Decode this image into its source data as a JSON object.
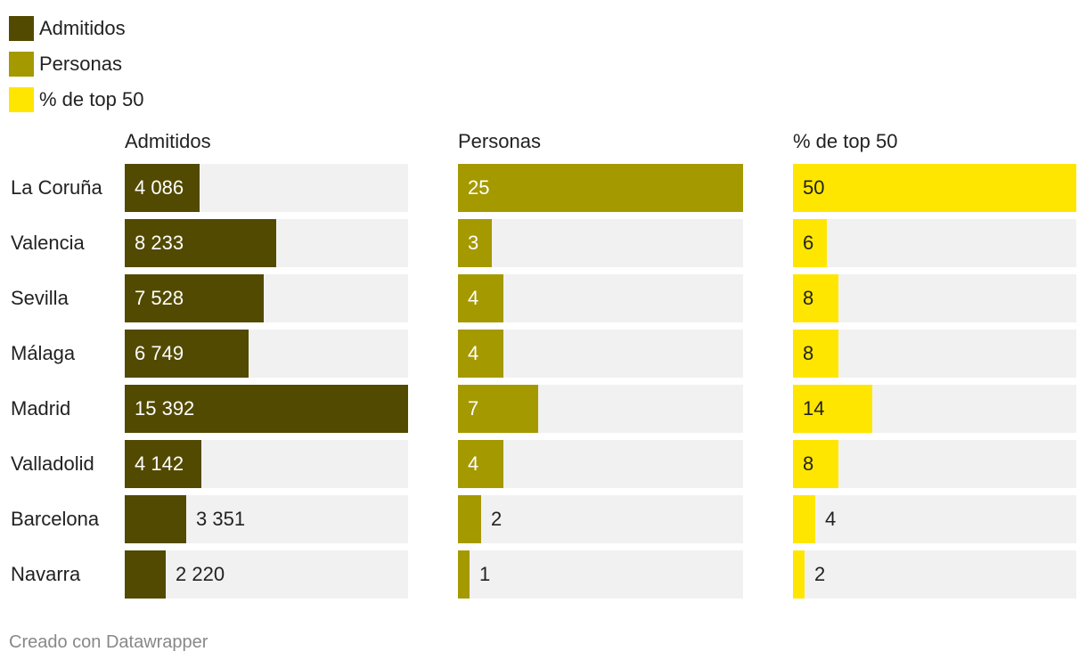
{
  "legend": [
    {
      "label": "Admitidos",
      "color": "#524a00"
    },
    {
      "label": "Personas",
      "color": "#a59900"
    },
    {
      "label": "% de top 50",
      "color": "#ffe600"
    }
  ],
  "footer": "Creado con Datawrapper",
  "chart_data": {
    "type": "bar",
    "orientation": "horizontal",
    "categories": [
      "La Coruña",
      "Valencia",
      "Sevilla",
      "Málaga",
      "Madrid",
      "Valladolid",
      "Barcelona",
      "Navarra"
    ],
    "series": [
      {
        "name": "Admitidos",
        "color": "#524a00",
        "label_color_inside": "#ffffff",
        "max": 15392,
        "values": [
          4086,
          8233,
          7528,
          6749,
          15392,
          4142,
          3351,
          2220
        ],
        "labels": [
          "4 086",
          "8 233",
          "7 528",
          "6 749",
          "15 392",
          "4 142",
          "3 351",
          "2 220"
        ]
      },
      {
        "name": "Personas",
        "color": "#a59900",
        "label_color_inside": "#ffffff",
        "max": 25,
        "values": [
          25,
          3,
          4,
          4,
          7,
          4,
          2,
          1
        ],
        "labels": [
          "25",
          "3",
          "4",
          "4",
          "7",
          "4",
          "2",
          "1"
        ]
      },
      {
        "name": "% de top 50",
        "color": "#ffe600",
        "label_color_inside": "#222222",
        "max": 50,
        "values": [
          50,
          6,
          8,
          8,
          14,
          8,
          4,
          2
        ],
        "labels": [
          "50",
          "6",
          "8",
          "8",
          "14",
          "8",
          "4",
          "2"
        ]
      }
    ]
  }
}
